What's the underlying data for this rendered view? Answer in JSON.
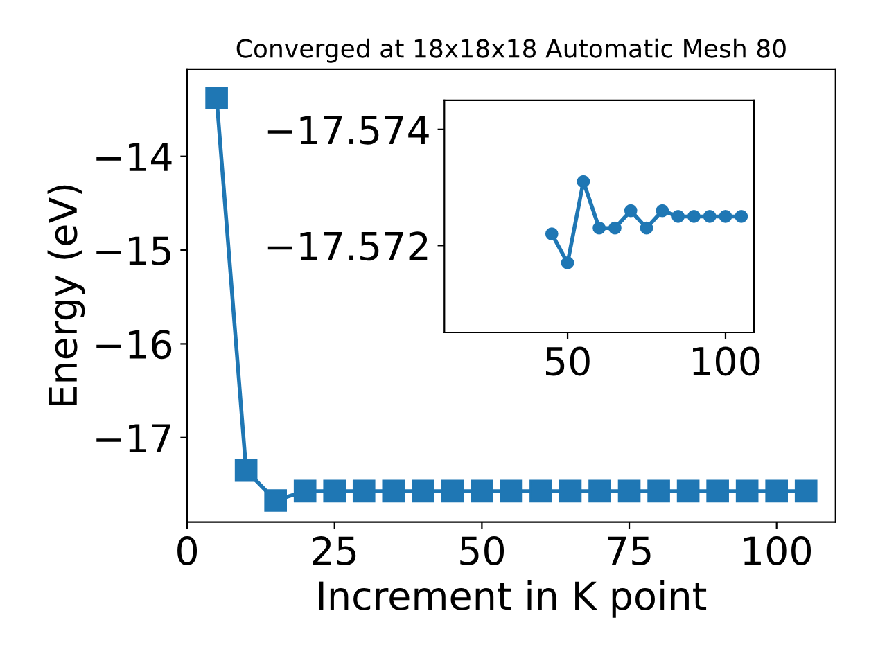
{
  "chart_data": [
    {
      "type": "line",
      "title": "Converged at 18x18x18 Automatic Mesh 80",
      "xlabel": "Increment in K point",
      "ylabel": "Energy (eV)",
      "marker": "square",
      "grid": false,
      "legend": false,
      "x": [
        5,
        10,
        15,
        20,
        25,
        30,
        35,
        40,
        45,
        50,
        55,
        60,
        65,
        70,
        75,
        80,
        85,
        90,
        95,
        100,
        105
      ],
      "series": [
        {
          "color": "#1f77b4",
          "values": [
            -13.38,
            -17.35,
            -17.67,
            -17.57,
            -17.57,
            -17.57,
            -17.57,
            -17.57,
            -17.57,
            -17.57,
            -17.57,
            -17.57,
            -17.57,
            -17.57,
            -17.57,
            -17.57,
            -17.57,
            -17.57,
            -17.57,
            -17.57,
            -17.57
          ]
        }
      ],
      "xlim": [
        0,
        110
      ],
      "ylim": [
        -17.9,
        -13.07
      ],
      "xticks": [
        0,
        25,
        50,
        75,
        100
      ],
      "yticks": [
        {
          "value": -14,
          "label": "−14"
        },
        {
          "value": -15,
          "label": "−15"
        },
        {
          "value": -16,
          "label": "−16"
        },
        {
          "value": -17,
          "label": "−17"
        }
      ]
    },
    {
      "type": "line",
      "marker": "circle",
      "grid": false,
      "legend": false,
      "x": [
        45,
        50,
        55,
        60,
        65,
        70,
        75,
        80,
        85,
        90,
        95,
        100,
        105
      ],
      "series": [
        {
          "color": "#1f77b4",
          "values": [
            -17.5722,
            -17.5717,
            -17.5731,
            -17.5723,
            -17.5723,
            -17.5726,
            -17.5723,
            -17.5726,
            -17.5725,
            -17.5725,
            -17.5725,
            -17.5725,
            -17.5725
          ]
        }
      ],
      "xlim": [
        11,
        109
      ],
      "ylim": [
        -17.5705,
        -17.5745
      ],
      "xticks": [
        50,
        100
      ],
      "yticks": [
        {
          "value": -17.574,
          "label": "−17.574"
        },
        {
          "value": -17.572,
          "label": "−17.572"
        }
      ]
    }
  ]
}
